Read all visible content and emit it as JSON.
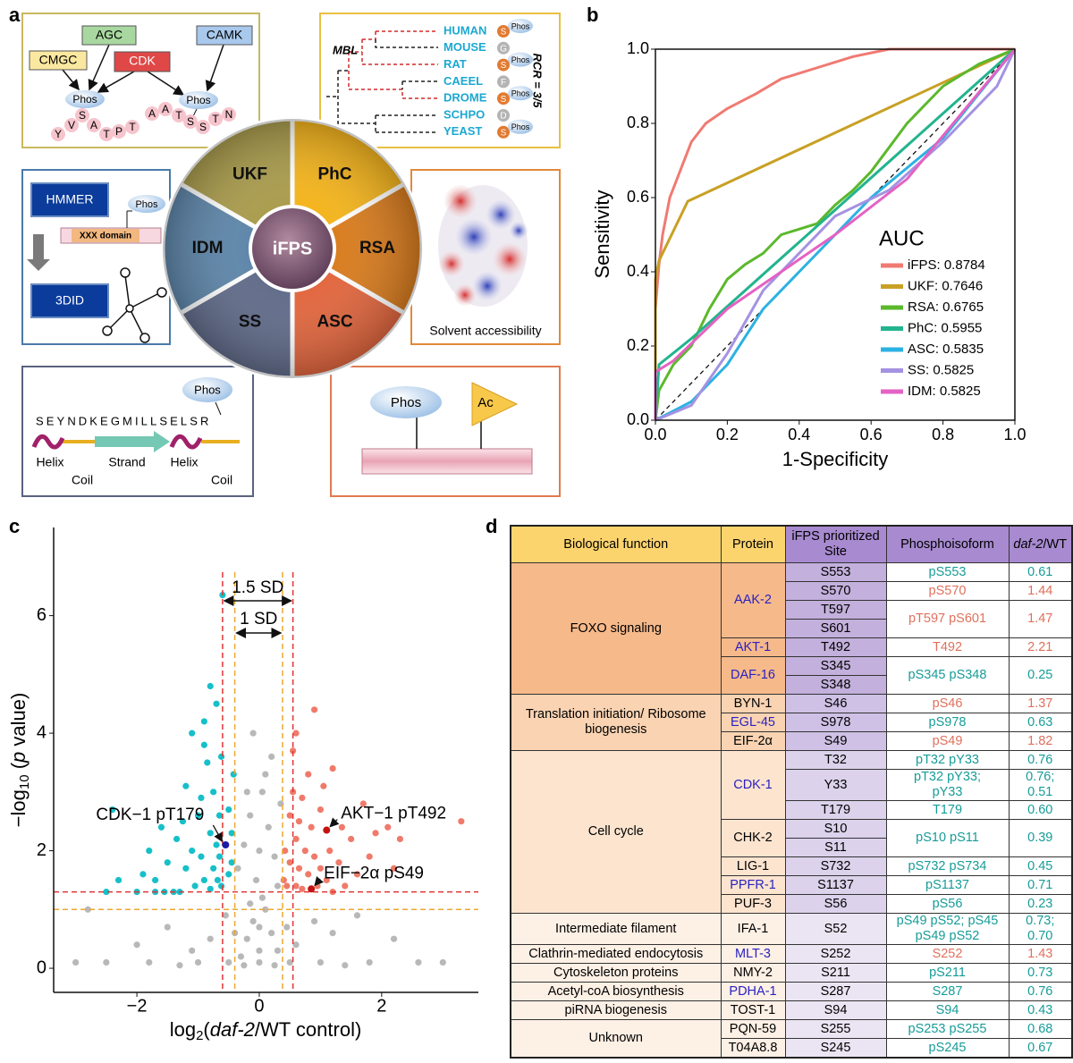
{
  "panel_labels": [
    "a",
    "b",
    "c",
    "d"
  ],
  "diagram": {
    "kinases": [
      "AGC",
      "CAMK",
      "CMGC",
      "CDK"
    ],
    "phos": "Phos",
    "peptide_1": [
      "Y",
      "V",
      "S",
      "A",
      "T",
      "P",
      "T"
    ],
    "peptide_2": [
      "A",
      "A",
      "T",
      "S",
      "S",
      "T",
      "N"
    ],
    "tree_label": "MBL",
    "species": [
      "HUMAN",
      "MOUSE",
      "RAT",
      "CAEEL",
      "DROME",
      "SCHPO",
      "YEAST"
    ],
    "residues": [
      "S",
      "G",
      "S",
      "F",
      "S",
      "D",
      "S"
    ],
    "rcr": "RCR = 3/5",
    "pie": [
      "UKF",
      "PhC",
      "RSA",
      "ASC",
      "SS",
      "IDM"
    ],
    "center": "iFPS",
    "hmmer": "HMMER",
    "domain": "XXX domain",
    "threedid": "3DID",
    "solvent": "Solvent accessibility",
    "sequence": "SEYNDKEGMILLSELSR",
    "structure_labels": [
      "Helix",
      "Coil",
      "Strand",
      "Helix",
      "Coil"
    ],
    "acetyl": "Ac"
  },
  "chart_data": [
    {
      "type": "line",
      "x_label": "1-Specificity",
      "y_label": "Sensitivity",
      "legend_title": "AUC",
      "legend": "right",
      "xlim": [
        0,
        1
      ],
      "ylim": [
        0,
        1
      ],
      "xticks": [
        {
          "value": 0,
          "label": "0.0"
        },
        0.2,
        0.4,
        0.6,
        0.8,
        {
          "value": 1,
          "label": "1.0"
        }
      ],
      "yticks": [
        {
          "value": 0,
          "label": "0.0"
        },
        0.2,
        0.4,
        0.6,
        0.8,
        {
          "value": 1,
          "label": "1.0"
        }
      ],
      "series": [
        {
          "name": "iFPS: 0.8784",
          "color": "#f07a72",
          "x": [
            0,
            0,
            0.01,
            0.02,
            0.04,
            0.06,
            0.08,
            0.1,
            0.14,
            0.2,
            0.28,
            0.35,
            0.45,
            0.55,
            0.65,
            1
          ],
          "values": [
            0,
            0.3,
            0.42,
            0.5,
            0.6,
            0.65,
            0.7,
            0.75,
            0.8,
            0.84,
            0.88,
            0.92,
            0.95,
            0.98,
            1,
            1
          ]
        },
        {
          "name": "UKF: 0.7646",
          "color": "#c8a024",
          "x": [
            0,
            0,
            0.01,
            0.09,
            1
          ],
          "values": [
            0,
            0.38,
            0.43,
            0.59,
            1
          ]
        },
        {
          "name": "RSA: 0.6765",
          "color": "#5cb82c",
          "x": [
            0,
            0.01,
            0.05,
            0.1,
            0.15,
            0.2,
            0.25,
            0.3,
            0.35,
            0.45,
            0.5,
            0.55,
            0.6,
            0.7,
            0.8,
            0.9,
            1
          ],
          "values": [
            0,
            0.08,
            0.15,
            0.2,
            0.3,
            0.38,
            0.42,
            0.45,
            0.5,
            0.53,
            0.58,
            0.62,
            0.67,
            0.8,
            0.9,
            0.96,
            1
          ]
        },
        {
          "name": "PhC: 0.5955",
          "color": "#22b48e",
          "x": [
            0,
            0.01,
            0.1,
            1
          ],
          "values": [
            0,
            0.15,
            0.22,
            1
          ]
        },
        {
          "name": "ASC: 0.5835",
          "color": "#2cb2e2",
          "x": [
            0,
            0.1,
            0.2,
            0.3,
            0.4,
            0.5,
            0.6,
            0.8,
            1
          ],
          "values": [
            0,
            0.05,
            0.15,
            0.3,
            0.4,
            0.5,
            0.6,
            0.76,
            1
          ]
        },
        {
          "name": "SS: 0.5825",
          "color": "#a492e2",
          "x": [
            0,
            0.1,
            0.2,
            0.3,
            0.4,
            0.5,
            0.65,
            0.8,
            0.9,
            0.95,
            1
          ],
          "values": [
            0,
            0.04,
            0.18,
            0.35,
            0.45,
            0.55,
            0.62,
            0.75,
            0.85,
            0.9,
            1
          ]
        },
        {
          "name": "IDM: 0.5825",
          "color": "#e462c4",
          "x": [
            0,
            0,
            0.05,
            0.2,
            0.35,
            0.5,
            0.7,
            1
          ],
          "values": [
            0,
            0.13,
            0.16,
            0.3,
            0.4,
            0.5,
            0.65,
            1
          ]
        }
      ]
    },
    {
      "type": "scatter",
      "x_label": [
        "log",
        "2",
        "(",
        "daf-2",
        "/WT control)"
      ],
      "y_label": [
        "−log",
        "10",
        " (",
        "p",
        " value)"
      ],
      "xlim": [
        -3.36,
        3.58
      ],
      "ylim": [
        -0.41,
        7.5
      ],
      "xticks": [
        {
          "value": -2,
          "label": "−2"
        },
        0,
        2
      ],
      "yticks": [
        0,
        2,
        4,
        6
      ],
      "series": [
        {
          "color": "#b8b8b8",
          "x": [
            -0.3,
            -0.2,
            -0.1,
            0,
            0.1,
            0.2,
            0.3,
            -0.35,
            -0.25,
            -0.15,
            0.05,
            0.15,
            0.25,
            0.35,
            -0.05,
            0,
            0.1,
            -0.2,
            0.2,
            -0.1,
            0.3,
            -0.4,
            0.45,
            -0.55,
            0.6,
            -0.8,
            0.9,
            -1.1,
            1.2,
            -1.5,
            1.6,
            -2,
            2.2,
            -2.5,
            2.6,
            -3,
            3,
            -1.8,
            1.8,
            -1,
            1,
            -0.5,
            0.5,
            0,
            -1.3,
            1.4,
            -0.25,
            0.25,
            -2.8,
            0,
            0.05,
            -0.15
          ],
          "values": [
            0.2,
            0.5,
            0.8,
            0.3,
            1,
            0.6,
            1.4,
            1.7,
            2.1,
            2.6,
            3,
            2.4,
            1.9,
            2.8,
            1.5,
            2,
            3.3,
            3,
            3.6,
            4,
            0.3,
            0.6,
            0.7,
            0.9,
            0.4,
            0.5,
            0.8,
            0.3,
            0.6,
            0.7,
            0.9,
            0.4,
            0.5,
            0.1,
            0.1,
            0.1,
            0.1,
            0.1,
            0.1,
            0.1,
            0.1,
            0.1,
            0.1,
            0.1,
            0.05,
            0.05,
            0.05,
            0.05,
            1,
            0.7,
            1.2,
            1.1
          ]
        },
        {
          "color": "#17c0c8",
          "x": [
            -2.5,
            -2.3,
            -2.4,
            -2,
            -1.9,
            -1.8,
            -1.7,
            -1.6,
            -1.5,
            -1.4,
            -1.35,
            -1.2,
            -1.2,
            -1.1,
            -1.1,
            -1.05,
            -1,
            -0.95,
            -0.9,
            -0.9,
            -0.85,
            -0.8,
            -0.8,
            -0.75,
            -0.75,
            -0.7,
            -0.7,
            -0.68,
            -0.65,
            -0.65,
            -0.62,
            -0.62,
            -1.3,
            -1.55,
            -1.7,
            -0.95,
            -0.8,
            -0.6,
            -0.9,
            -1.25,
            -0.45,
            -0.5,
            -0.45,
            -0.5,
            -0.42
          ],
          "values": [
            1.3,
            1.5,
            2.7,
            1.3,
            1.6,
            2,
            1.5,
            2.4,
            1.8,
            1.3,
            2.2,
            1.7,
            3.1,
            2,
            4,
            1.4,
            2.6,
            1.9,
            1.5,
            4.2,
            3.5,
            2.3,
            1.35,
            3,
            1.7,
            2.1,
            4.5,
            1.5,
            2.6,
            1.9,
            3.6,
            1.4,
            1.3,
            1.3,
            1.3,
            2.9,
            4.8,
            6.35,
            3.8,
            2.5,
            2.3,
            1.6,
            1.8,
            2.7,
            3.3
          ]
        },
        {
          "color": "#f07a6a",
          "x": [
            0.4,
            0.42,
            0.45,
            0.5,
            0.5,
            0.55,
            0.6,
            0.6,
            0.65,
            0.7,
            0.7,
            0.75,
            0.8,
            0.8,
            0.85,
            0.9,
            0.95,
            1,
            1,
            1.05,
            1.1,
            1.15,
            1.2,
            1.3,
            1.35,
            1.4,
            1.5,
            1.6,
            1.7,
            1.8,
            1.9,
            2.1,
            2.2,
            0.9,
            0.6,
            0.55,
            2.3,
            3.3,
            1.2,
            0.65
          ],
          "values": [
            1.5,
            2,
            1.4,
            2.6,
            1.8,
            3,
            1.4,
            2.2,
            1.7,
            2.9,
            1.35,
            2,
            3.3,
            1.6,
            2.4,
            1.9,
            1.4,
            2.7,
            1.7,
            3.1,
            1.5,
            2,
            3.4,
            1.8,
            2.4,
            1.4,
            2.2,
            1.6,
            2.8,
            1.9,
            2.3,
            2.4,
            1.7,
            4.4,
            4,
            3.7,
            2.2,
            2.5,
            1.3,
            2.5
          ]
        }
      ],
      "vlines": [
        {
          "value": -0.6,
          "color": "#e03434"
        },
        {
          "value": 0.55,
          "color": "#e03434"
        },
        {
          "value": -0.4,
          "color": "#eca832"
        },
        {
          "value": 0.38,
          "color": "#eca832"
        }
      ],
      "hlines": [
        {
          "value": 1.3,
          "color": "#e03434"
        },
        {
          "value": 1,
          "color": "#eca832"
        }
      ],
      "sd_labels": [
        "1.5 SD",
        "1 SD"
      ],
      "annotations": [
        {
          "text": "CDK−1 pT179",
          "x": -0.55,
          "y": 2.1,
          "color": "#1a1aa8"
        },
        {
          "text": "AKT−1 pT492",
          "x": 1.1,
          "y": 2.35,
          "color": "#c41212"
        },
        {
          "text": "EIF−2α pS49",
          "x": 0.85,
          "y": 1.35,
          "color": "#c41212"
        }
      ]
    }
  ],
  "table": {
    "header": [
      "Biological function",
      "Protein",
      "iFPS prioritized Site",
      "Phosphoisoform",
      [
        "daf-2",
        "/WT"
      ]
    ],
    "rows": [
      [
        "FOXO signaling",
        "AAK-2",
        "S553",
        "pS553",
        "0.61"
      ],
      [
        "S570",
        "pS570",
        "1.44"
      ],
      [
        "T597",
        "pT597 pS601",
        "1.47"
      ],
      [
        "S601"
      ],
      [
        "AKT-1",
        "T492",
        "T492",
        "2.21"
      ],
      [
        "DAF-16",
        "S345",
        "pS345 pS348",
        "0.25"
      ],
      [
        "S348"
      ],
      [
        "Translation initiation/ Ribosome biogenesis",
        "BYN-1",
        "S46",
        "pS46",
        "1.37"
      ],
      [
        "EGL-45",
        "S978",
        "pS978",
        "0.63"
      ],
      [
        "EIF-2α",
        "S49",
        "pS49",
        "1.82"
      ],
      [
        "Cell cycle",
        "CDK-1",
        "T32",
        "pT32 pY33",
        "0.76"
      ],
      [
        "Y33",
        "pT32 pY33; pY33",
        "0.76; 0.51"
      ],
      [
        "T179",
        "T179",
        "0.60"
      ],
      [
        "CHK-2",
        "S10",
        "pS10 pS11",
        "0.39"
      ],
      [
        "S11"
      ],
      [
        "LIG-1",
        "S732",
        "pS732 pS734",
        "0.45"
      ],
      [
        "PPFR-1",
        "S1137",
        "pS1137",
        "0.71"
      ],
      [
        "PUF-3",
        "S56",
        "pS56",
        "0.23"
      ],
      [
        "Intermediate filament",
        "IFA-1",
        "S52",
        "pS49 pS52; pS45 pS49 pS52",
        "0.73; 0.70"
      ],
      [
        "Clathrin-mediated endocytosis",
        "MLT-3",
        "S252",
        "S252",
        "1.43"
      ],
      [
        "Cytoskeleton proteins",
        "NMY-2",
        "S211",
        "pS211",
        "0.73"
      ],
      [
        "Acetyl-coA biosynthesis",
        "PDHA-1",
        "S287",
        "S287",
        "0.76"
      ],
      [
        "piRNA biogenesis",
        "TOST-1",
        "S94",
        "S94",
        "0.43"
      ],
      [
        "Unknown",
        "PQN-59",
        "S255",
        "pS253 pS255",
        "0.68"
      ],
      [
        "T04A8.8",
        "S245",
        "pS245",
        "0.67"
      ]
    ]
  }
}
